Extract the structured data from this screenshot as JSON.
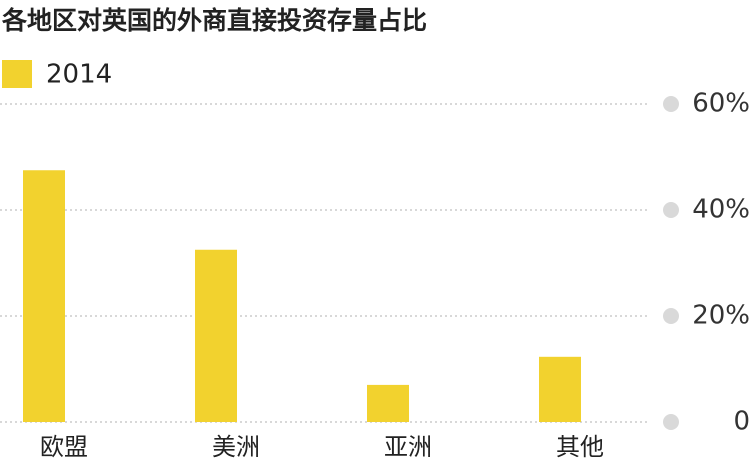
{
  "chart_data": {
    "type": "bar",
    "title": "各地区对英国的外商直接投资存量占比",
    "categories": [
      "欧盟",
      "美洲",
      "亚洲",
      "其他"
    ],
    "series": [
      {
        "name": "2014",
        "color": "#f2d22e",
        "values": [
          47.5,
          32.5,
          7,
          12.3
        ]
      }
    ],
    "ylim": [
      0,
      60
    ],
    "yticks": [
      0,
      {
        "value": 20,
        "label": "20%"
      },
      {
        "value": 40,
        "label": "40%"
      },
      {
        "value": 60,
        "label": "60%"
      }
    ],
    "grid": true
  }
}
